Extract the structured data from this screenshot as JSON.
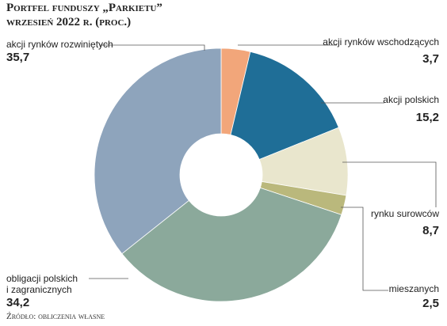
{
  "chart_data": {
    "type": "pie",
    "title": "Portfel funduszy „Parkietu”",
    "subtitle": "wrzesień 2022 r. (proc.)",
    "source": "Źródło: obliczenia własne",
    "categories": [
      "akcji rynków wschodzących",
      "akcji polskich",
      "rynku surowców",
      "mieszanych",
      "obligacji polskich\ni zagranicznych",
      "akcji rynków rozwiniętych"
    ],
    "values": [
      3.7,
      15.2,
      8.7,
      2.5,
      34.2,
      35.7
    ],
    "value_labels": [
      "3,7",
      "15,2",
      "8,7",
      "2,5",
      "34,2",
      "35,7"
    ],
    "colors": [
      "#f2a67a",
      "#1f6e97",
      "#e9e6cd",
      "#bab87c",
      "#8ba99b",
      "#8ea4bc"
    ]
  }
}
